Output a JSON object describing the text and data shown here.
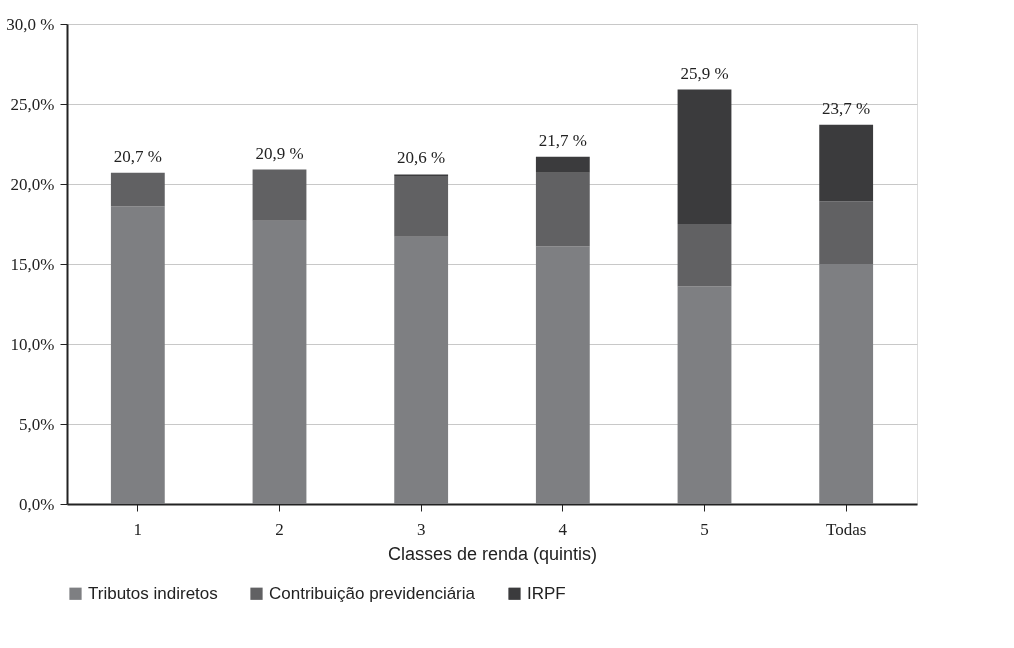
{
  "chart_data": {
    "type": "bar",
    "stacked": true,
    "xlabel": "Classes de renda (quintis)",
    "categories": [
      "1",
      "2",
      "3",
      "4",
      "5",
      "Todas"
    ],
    "series": [
      {
        "name": "Tributos indiretos",
        "color": "#7e7f82",
        "values": [
          18.6,
          17.7,
          16.7,
          16.1,
          13.6,
          15.0
        ]
      },
      {
        "name": "Contribuição previdenciária",
        "color": "#616163",
        "values": [
          2.1,
          3.2,
          3.8,
          4.6,
          3.9,
          3.9
        ]
      },
      {
        "name": "IRPF",
        "color": "#3b3b3d",
        "values": [
          0.0,
          0.0,
          0.1,
          1.0,
          8.4,
          4.8
        ]
      }
    ],
    "totals": [
      "20,7 %",
      "20,9 %",
      "20,6 %",
      "21,7 %",
      "25,9 %",
      "23,7 %"
    ],
    "ylim": [
      0,
      30
    ],
    "yticks": [
      {
        "value": 0,
        "label": "0,0%"
      },
      {
        "value": 5,
        "label": "5,0%"
      },
      {
        "value": 10,
        "label": "10,0%"
      },
      {
        "value": 15,
        "label": "15,0%"
      },
      {
        "value": 20,
        "label": "20,0%"
      },
      {
        "value": 25,
        "label": "25,0%"
      },
      {
        "value": 30,
        "label": "30,0 %"
      }
    ],
    "grid": "y",
    "legend": "bottom"
  }
}
